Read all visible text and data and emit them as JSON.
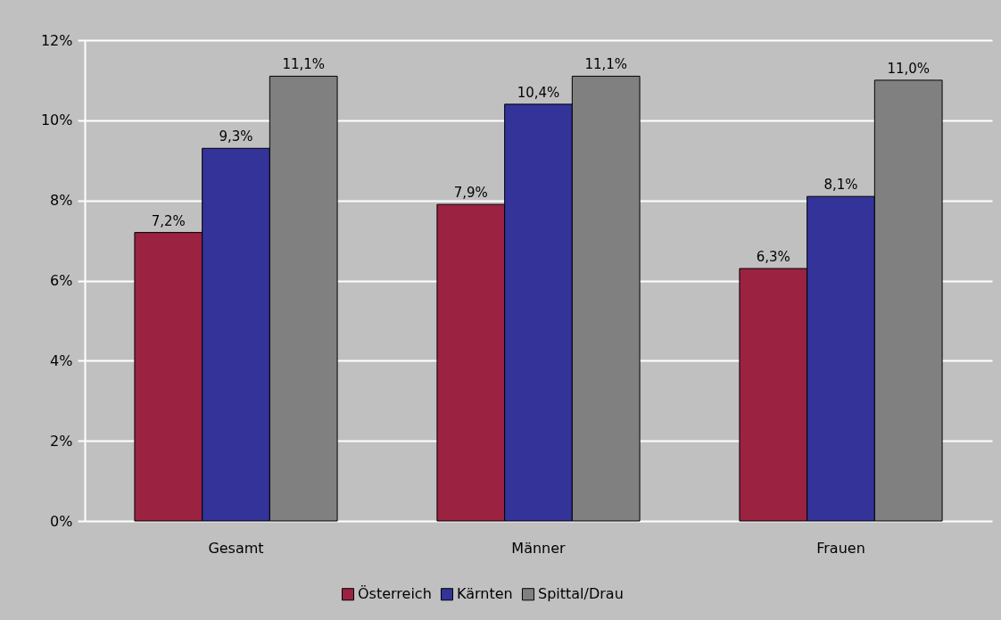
{
  "chart_data": {
    "type": "bar",
    "categories": [
      "Gesamt",
      "Männer",
      "Frauen"
    ],
    "series": [
      {
        "name": "Österreich",
        "color": "#9b2240",
        "values": [
          7.2,
          7.9,
          6.3
        ],
        "value_labels": [
          "7,2%",
          "7,9%",
          "6,3%"
        ]
      },
      {
        "name": "Kärnten",
        "color": "#333399",
        "values": [
          9.3,
          10.4,
          8.1
        ],
        "value_labels": [
          "9,3%",
          "10,4%",
          "8,1%"
        ]
      },
      {
        "name": "Spittal/Drau",
        "color": "#808080",
        "values": [
          11.1,
          11.1,
          11.0
        ],
        "value_labels": [
          "11,1%",
          "11,1%",
          "11,0%"
        ]
      }
    ],
    "ylim": [
      0,
      12
    ],
    "yticks": [
      {
        "value": 0,
        "label": "0%"
      },
      {
        "value": 2,
        "label": "2%"
      },
      {
        "value": 4,
        "label": "4%"
      },
      {
        "value": 6,
        "label": "6%"
      },
      {
        "value": 8,
        "label": "8%"
      },
      {
        "value": 10,
        "label": "10%"
      },
      {
        "value": 12,
        "label": "12%"
      }
    ],
    "grid": "y",
    "legend": "bottom"
  }
}
